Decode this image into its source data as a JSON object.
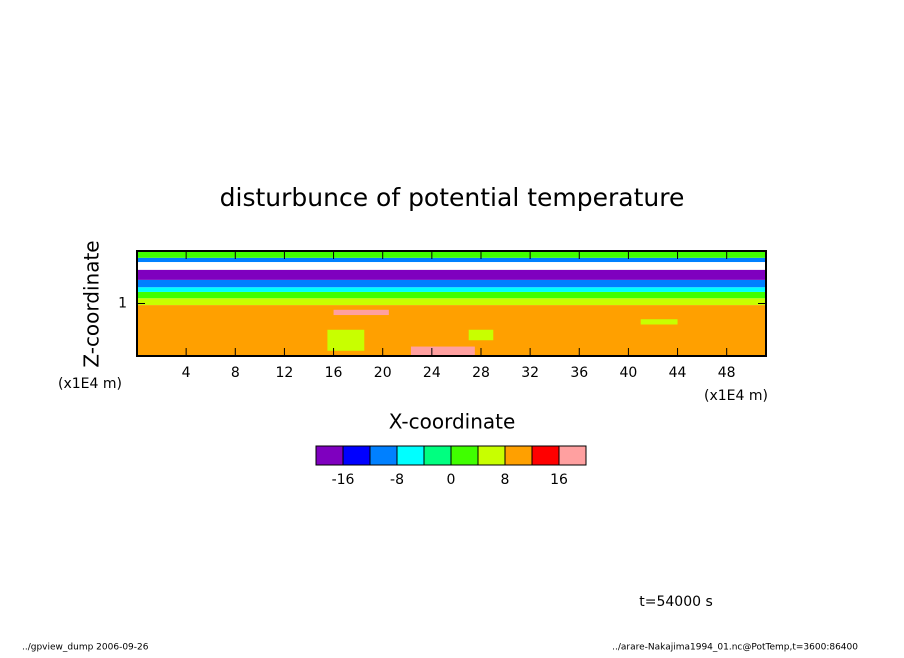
{
  "chart_data": {
    "type": "contour",
    "title": "disturbunce of potential temperature",
    "xlabel": "X-coordinate",
    "ylabel": "Z-coordinate",
    "xunit": "(x1E4 m)",
    "yunit": "(x1E4 m)",
    "xlim": [
      0,
      51.2
    ],
    "xticks": [
      4,
      8,
      12,
      16,
      20,
      24,
      28,
      32,
      36,
      40,
      44,
      48
    ],
    "ylim": [
      0,
      2
    ],
    "yticks": [
      1
    ],
    "levels": [
      -20,
      -16,
      -12,
      -8,
      -4,
      0,
      4,
      8,
      12,
      16,
      20
    ],
    "colors": [
      "#7f00bf",
      "#0000ff",
      "#0080ff",
      "#00ffff",
      "#00ff80",
      "#40ff00",
      "#c8ff00",
      "#ffa000",
      "#ff0000",
      "#ffa0a0"
    ],
    "colorbar_ticks": [
      -16,
      -8,
      0,
      8,
      16
    ],
    "layers": {
      "z": [
        0,
        0.97,
        1.1,
        1.22,
        1.31,
        1.45,
        1.64,
        1.79,
        1.87,
        2.0
      ],
      "values": [
        10,
        6,
        2,
        -6,
        -10,
        -18,
        null,
        -10,
        2
      ]
    },
    "patches": [
      {
        "x": [
          22.3,
          27.5
        ],
        "z": [
          0,
          0.18
        ],
        "value": 18
      },
      {
        "x": [
          16,
          20.5
        ],
        "z": [
          0.78,
          0.88
        ],
        "value": 18
      },
      {
        "x": [
          15.5,
          18.5
        ],
        "z": [
          0.1,
          0.5
        ],
        "value": 6
      },
      {
        "x": [
          27,
          29
        ],
        "z": [
          0.3,
          0.5
        ],
        "value": 6
      },
      {
        "x": [
          41,
          44
        ],
        "z": [
          0.6,
          0.7
        ],
        "value": 6
      }
    ],
    "annotation": "t=54000 s",
    "footer_left": "../gpview_dump  2006-09-26",
    "footer_right": "../arare-Nakajima1994_01.nc@PotTemp,t=3600:86400"
  }
}
